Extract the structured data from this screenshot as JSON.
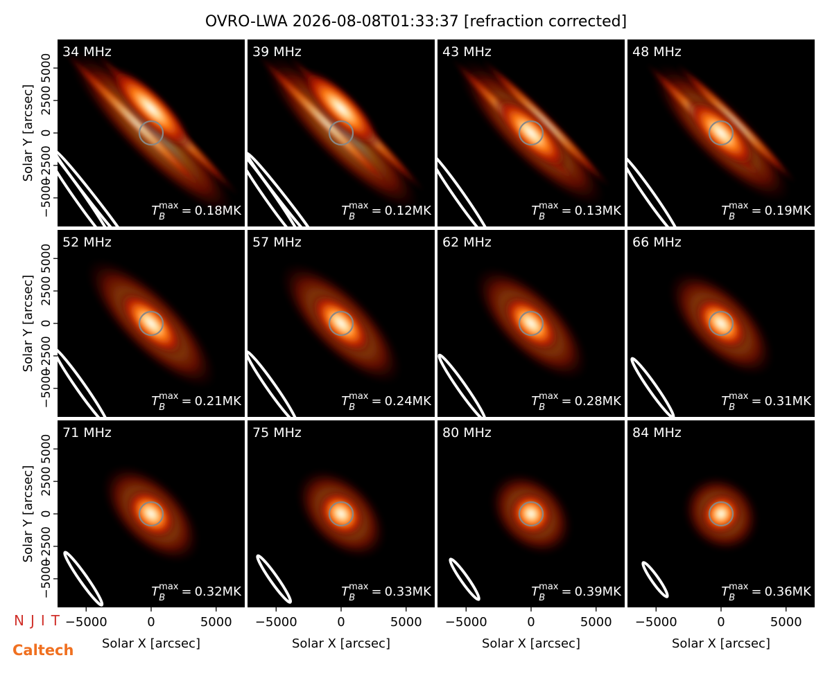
{
  "title": "OVRO-LWA 2026-08-08T01:33:37 [refraction corrected]",
  "x_label": "Solar X [arcsec]",
  "y_label": "Solar Y [arcsec]",
  "xlim": [
    -7200,
    7200
  ],
  "ylim": [
    -7200,
    7200
  ],
  "xticks": [
    {
      "value": -5000,
      "label": "−5000"
    },
    0,
    5000
  ],
  "yticks": [
    {
      "value": -5000,
      "label": "−5000"
    },
    {
      "value": -2500,
      "label": "−2500"
    },
    0,
    2500,
    5000
  ],
  "tb_label": {
    "symbol": "T",
    "sub": "B",
    "sup": "max",
    "eq": "="
  },
  "panels": [
    {
      "frequency": "34 MHz",
      "tb_max": "0.18MK"
    },
    {
      "frequency": "39 MHz",
      "tb_max": "0.12MK"
    },
    {
      "frequency": "43 MHz",
      "tb_max": "0.13MK"
    },
    {
      "frequency": "48 MHz",
      "tb_max": "0.19MK"
    },
    {
      "frequency": "52 MHz",
      "tb_max": "0.21MK"
    },
    {
      "frequency": "57 MHz",
      "tb_max": "0.24MK"
    },
    {
      "frequency": "62 MHz",
      "tb_max": "0.28MK"
    },
    {
      "frequency": "66 MHz",
      "tb_max": "0.31MK"
    },
    {
      "frequency": "71 MHz",
      "tb_max": "0.32MK"
    },
    {
      "frequency": "75 MHz",
      "tb_max": "0.33MK"
    },
    {
      "frequency": "80 MHz",
      "tb_max": "0.39MK"
    },
    {
      "frequency": "84 MHz",
      "tb_max": "0.36MK"
    }
  ],
  "logos": [
    "NJIT",
    "Caltech"
  ]
}
